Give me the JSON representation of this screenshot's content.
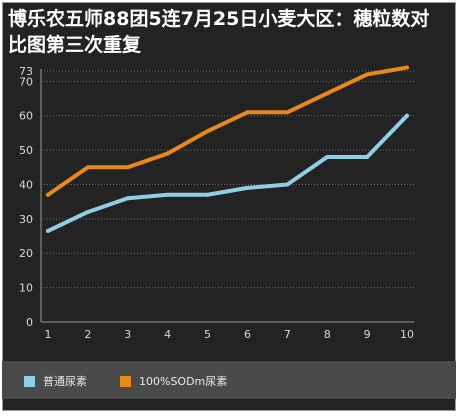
{
  "chart_data": {
    "type": "line",
    "title": "博乐农五师88团5连7月25日小麦大区：穗粒数对比图第三次重复",
    "xlabel": "",
    "ylabel": "",
    "x": [
      1,
      2,
      3,
      4,
      5,
      6,
      7,
      8,
      9,
      10
    ],
    "ylim": [
      0,
      73
    ],
    "yticks": [
      0,
      10,
      20,
      30,
      40,
      50,
      60,
      70,
      73
    ],
    "grid": true,
    "legend_position": "bottom-left",
    "series": [
      {
        "name": "普通尿素",
        "color": "#8ecfe4",
        "values": [
          26.5,
          32,
          36,
          37,
          37,
          39,
          40,
          48,
          48,
          60
        ]
      },
      {
        "name": "100%SODm尿素",
        "color": "#e8891e",
        "values": [
          37,
          45,
          45,
          49,
          55.5,
          61,
          61,
          66.5,
          72,
          74
        ]
      }
    ]
  }
}
